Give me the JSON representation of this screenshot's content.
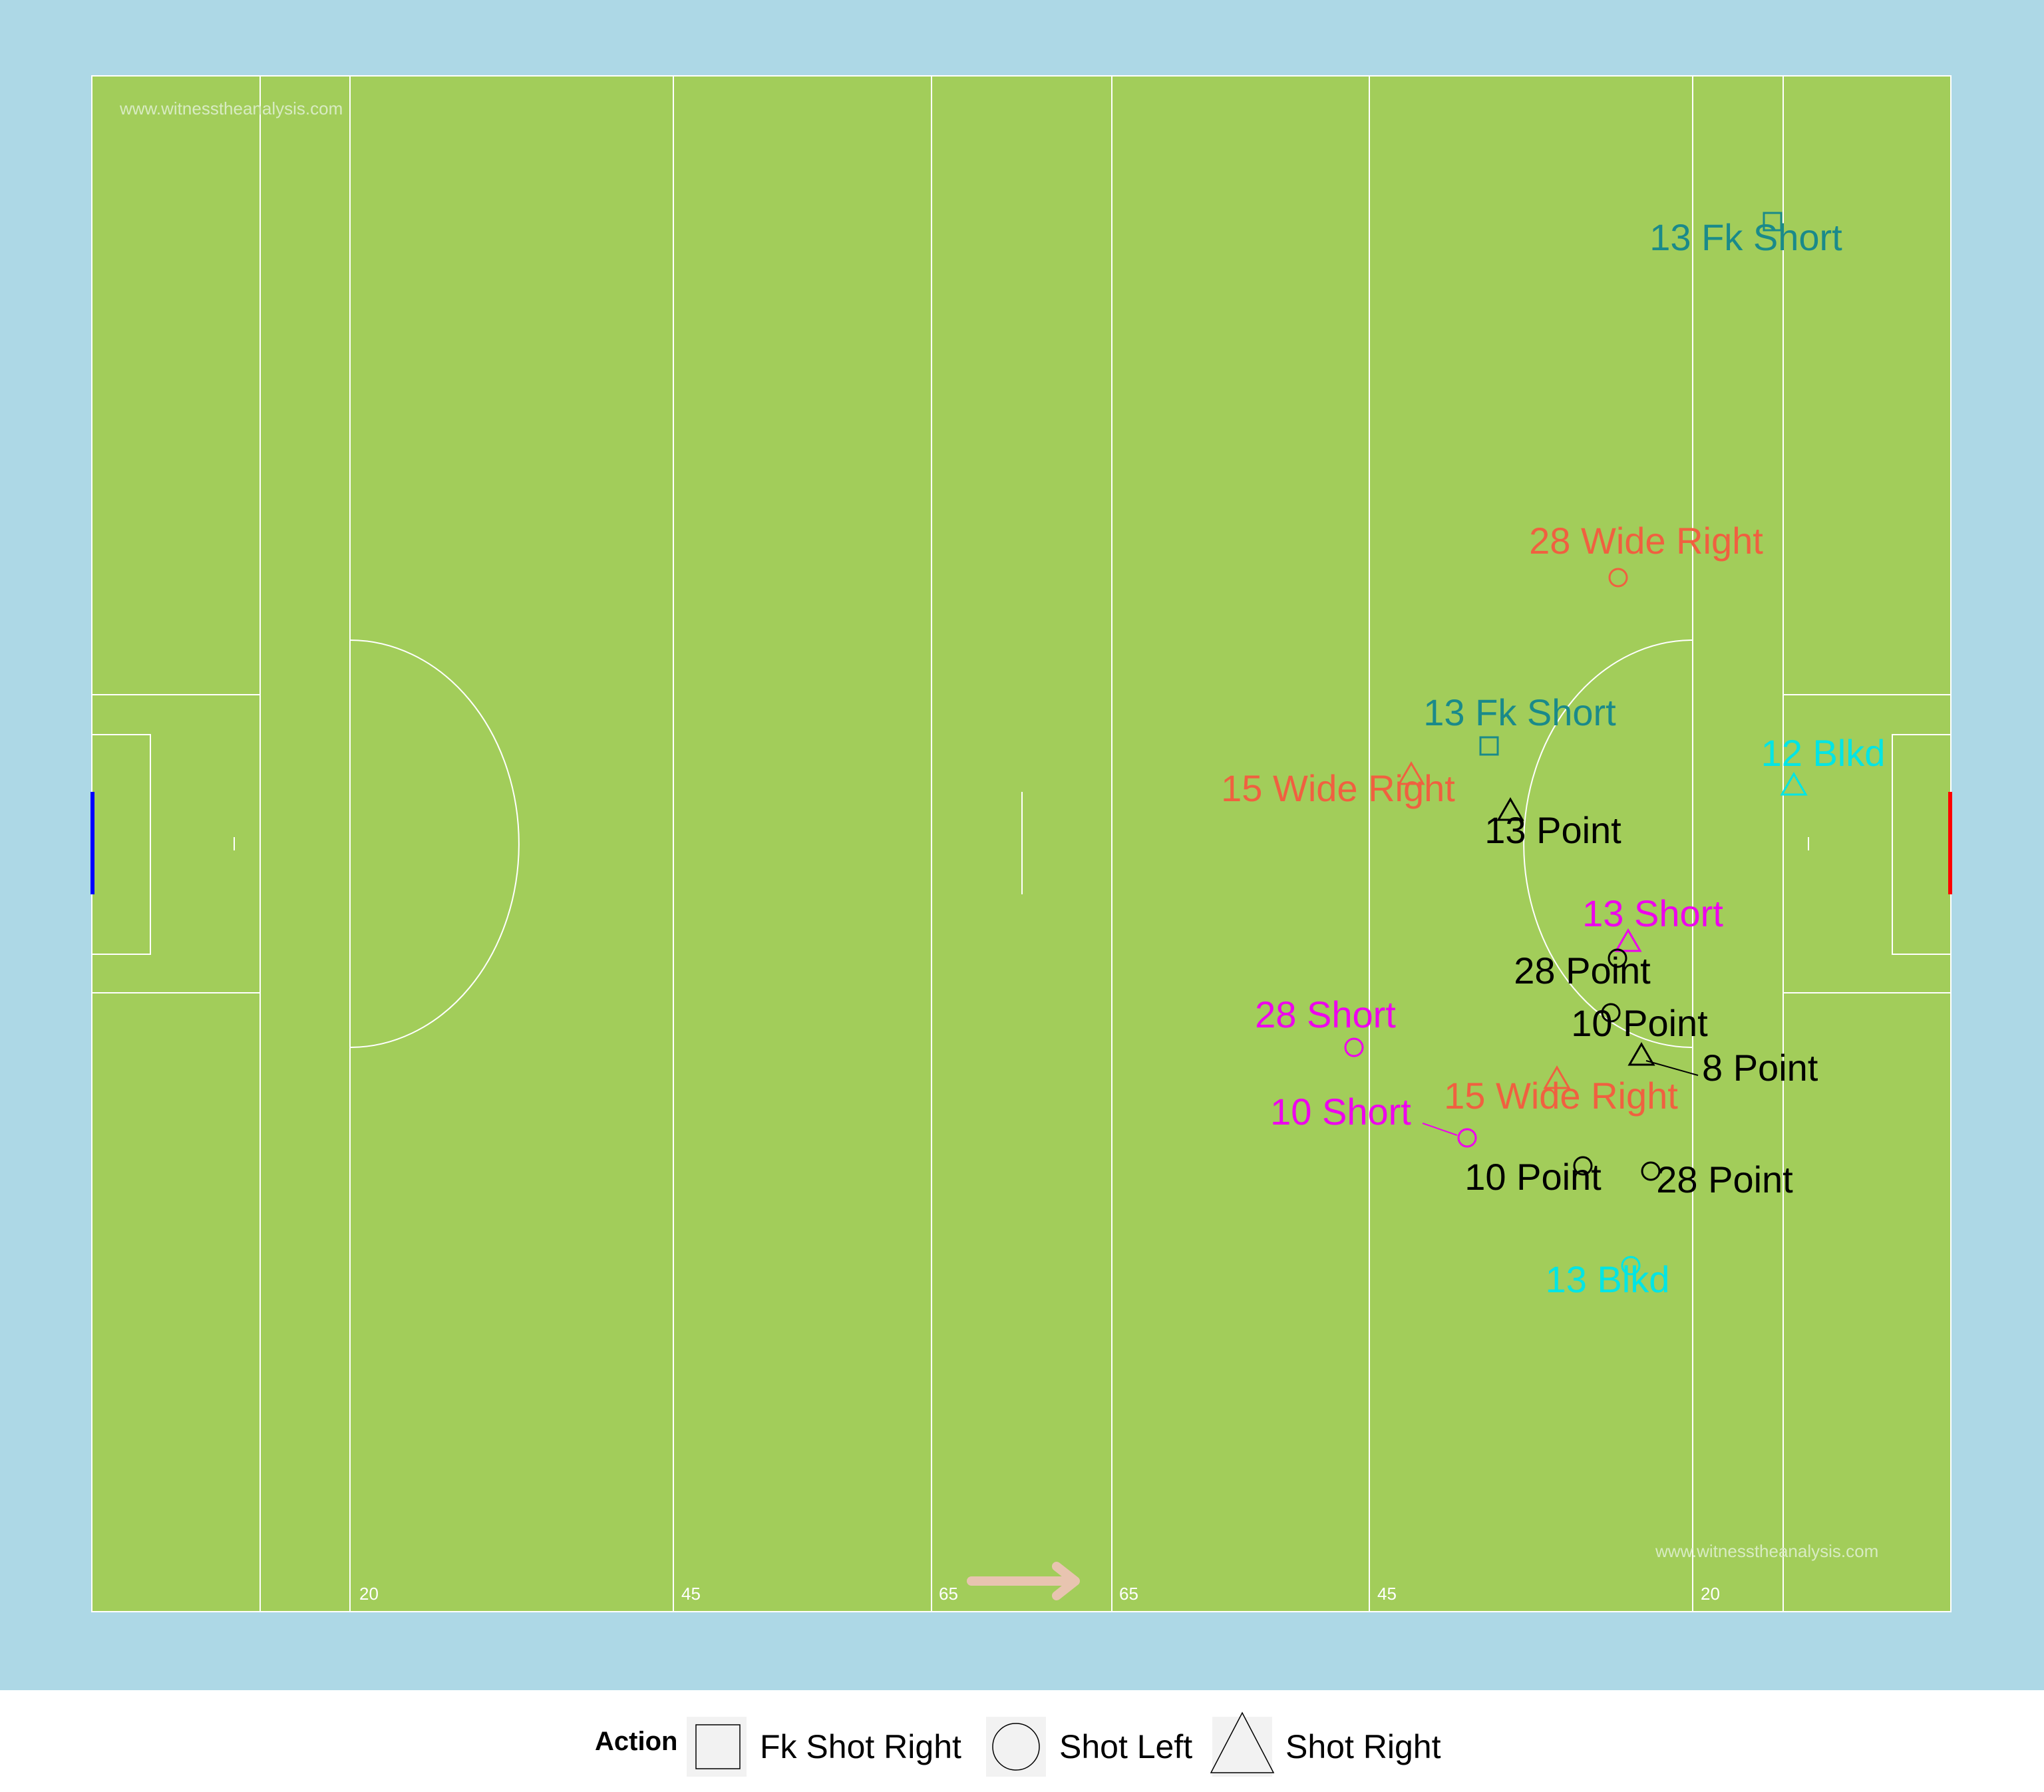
{
  "pitch": {
    "colors": {
      "surround": "#add8e6",
      "grass": "#a2cd5a",
      "line": "#ffffff",
      "watermark": "#d8ebc2",
      "arrow": "#e8c4b0",
      "left_goal": "#0000ff",
      "right_goal": "#ff0000"
    },
    "watermark_top": "www.witnesstheanalysis.com",
    "watermark_bottom": "www.witnesstheanalysis.com",
    "distance_labels": [
      "20",
      "45",
      "65",
      "65",
      "45",
      "20"
    ],
    "attack_direction": "right"
  },
  "shots": [
    {
      "player": "13",
      "label": "13 Fk Short",
      "action": "Fk Shot Right",
      "color": "#1a8a8a"
    },
    {
      "player": "28",
      "label": "28 Wide Right",
      "action": "Shot Left",
      "color": "#f06040"
    },
    {
      "player": "13",
      "label": "13 Fk Short",
      "action": "Fk Shot Right",
      "color": "#1a8a8a"
    },
    {
      "player": "12",
      "label": "12 Blkd",
      "action": "Shot Right",
      "color": "#00e5e5"
    },
    {
      "player": "15",
      "label": "15 Wide Right",
      "action": "Shot Right",
      "color": "#f06040"
    },
    {
      "player": "13",
      "label": "13 Point",
      "action": "Shot Right",
      "color": "#000000"
    },
    {
      "player": "13",
      "label": "13 Short",
      "action": "Shot Right",
      "color": "#ee00ee"
    },
    {
      "player": "28",
      "label": "28 Point",
      "action": "Shot Left",
      "color": "#000000"
    },
    {
      "player": "10",
      "label": "10 Point",
      "action": "Shot Left",
      "color": "#000000"
    },
    {
      "player": "28",
      "label": "28 Short",
      "action": "Shot Left",
      "color": "#ee00ee"
    },
    {
      "player": "8",
      "label": "8 Point",
      "action": "Shot Right",
      "color": "#000000"
    },
    {
      "player": "15",
      "label": "15 Wide Right",
      "action": "Shot Right",
      "color": "#f06040"
    },
    {
      "player": "10",
      "label": "10 Short",
      "action": "Shot Left",
      "color": "#ee00ee"
    },
    {
      "player": "10",
      "label": "10 Point",
      "action": "Shot Left",
      "color": "#000000"
    },
    {
      "player": "28",
      "label": "28 Point",
      "action": "Shot Left",
      "color": "#000000"
    },
    {
      "player": "13",
      "label": "13 Blkd",
      "action": "Shot Left",
      "color": "#00e5e5"
    }
  ],
  "legend": {
    "title": "Action",
    "items": [
      {
        "label": "Fk Shot Right",
        "shape": "square-icon"
      },
      {
        "label": "Shot Left",
        "shape": "circle-icon"
      },
      {
        "label": "Shot Right",
        "shape": "triangle-icon"
      }
    ]
  }
}
